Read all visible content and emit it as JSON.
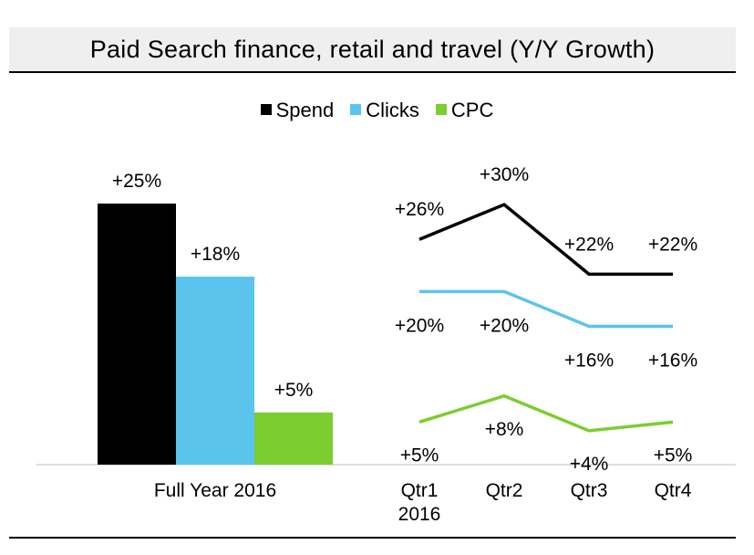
{
  "title": "Paid Search finance, retail and travel (Y/Y Growth)",
  "colors": {
    "spend": "#000000",
    "clicks": "#5bc4ec",
    "cpc": "#7ccd2f"
  },
  "chart_data": [
    {
      "type": "bar",
      "categories": [
        "Full Year 2016"
      ],
      "series": [
        {
          "name": "Spend",
          "values": [
            25
          ],
          "label": "+25%"
        },
        {
          "name": "Clicks",
          "values": [
            18
          ],
          "label": "+18%"
        },
        {
          "name": "CPC",
          "values": [
            5
          ],
          "label": "+5%"
        }
      ],
      "ylim": [
        0,
        30
      ],
      "legend": "top-center"
    },
    {
      "type": "line",
      "categories": [
        [
          "Qtr1",
          "2016"
        ],
        [
          "Qtr2"
        ],
        [
          "Qtr3"
        ],
        [
          "Qtr4"
        ]
      ],
      "series": [
        {
          "name": "Spend",
          "values": [
            26,
            30,
            22,
            22
          ],
          "labels": [
            "+26%",
            "+30%",
            "+22%",
            "+22%"
          ]
        },
        {
          "name": "Clicks",
          "values": [
            20,
            20,
            16,
            16
          ],
          "labels": [
            "+20%",
            "+20%",
            "+16%",
            "+16%"
          ]
        },
        {
          "name": "CPC",
          "values": [
            5,
            8,
            4,
            5
          ],
          "labels": [
            "+5%",
            "+8%",
            "+4%",
            "+5%"
          ]
        }
      ],
      "ylim": [
        0,
        30
      ]
    }
  ]
}
